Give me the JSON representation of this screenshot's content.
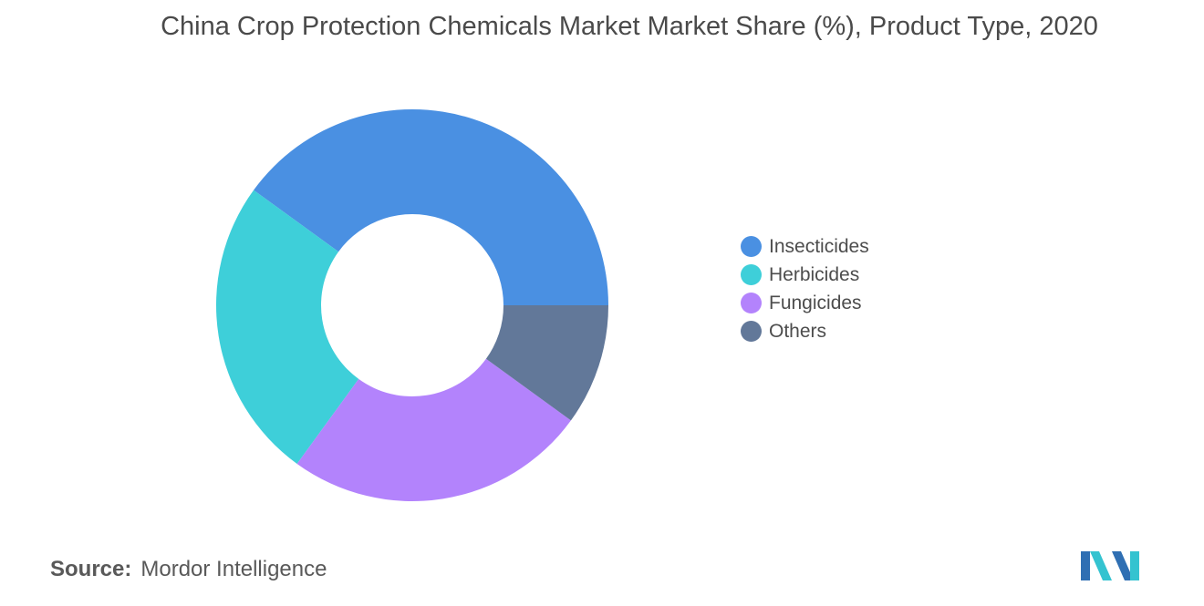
{
  "chart_data": {
    "type": "pie",
    "title": "China Crop Protection Chemicals Market Market Share (%), Product Type, 2020",
    "categories": [
      "Insecticides",
      "Herbicides",
      "Fungicides",
      "Others"
    ],
    "values": [
      40,
      25,
      25,
      10
    ],
    "colors": [
      "#4a90e2",
      "#3ecfd9",
      "#b383fc",
      "#627899"
    ],
    "donut": true,
    "legend_position": "right"
  },
  "source": {
    "label": "Source:",
    "text": "Mordor Intelligence"
  },
  "logo": {
    "name": "mordor-intelligence-logo",
    "colors": [
      "#2f6fb3",
      "#34c3d0"
    ]
  }
}
